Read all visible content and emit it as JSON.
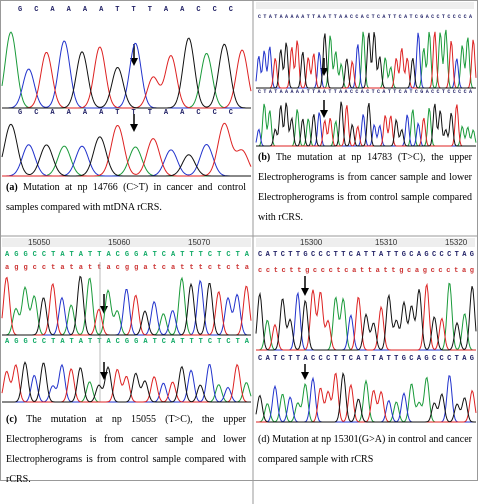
{
  "panels": [
    {
      "label": "(a)",
      "caption": "Mutation at np 14766 (C>T) in cancer and control samples compared with mtDNA rCRS.",
      "sequences": [
        "G C A A A A T T T A A C C C",
        "G C A A A A T T T A A C C C"
      ]
    },
    {
      "label": "(b)",
      "caption": "The mutation at np 14783 (T>C), the upper Electropherograms is from cancer sample and lower Electropherograms is from control sample compared with rCRS.",
      "sequences": [
        "CTATAAAAATTAATTAACCACTCATTCATCGACCTCCCCA",
        "CTATAAAAATTAATTAACCACTCATTCATCGACCTCCCCA"
      ]
    },
    {
      "label": "(c)",
      "caption": "The mutation at np 15055 (T>C), the upper Electropherograms is from cancer sample and lower Electropherograms is from control sample compared with rCRS.",
      "positions": [
        "15050",
        "15060",
        "15070"
      ],
      "sequences": [
        "AGGCCTATATTACGGATCATTTCTCTA",
        "aggcctatattacggatcatttctcta",
        "AGGCCTATATTACGGATCATTTCTCTA"
      ]
    },
    {
      "label": "(d)",
      "caption": "Mutation at np 15301(G>A) in control and cancer compared sample with rCRS",
      "positions": [
        "15300",
        "15310",
        "15320"
      ],
      "sequences": [
        "CATCTTGCCCTTCATTATTGCAGCCCTAG",
        "cctcttgccctcattattgcagccctag",
        "CATCTTACCCTTCATTATTGCAGCCCTAG"
      ]
    }
  ]
}
